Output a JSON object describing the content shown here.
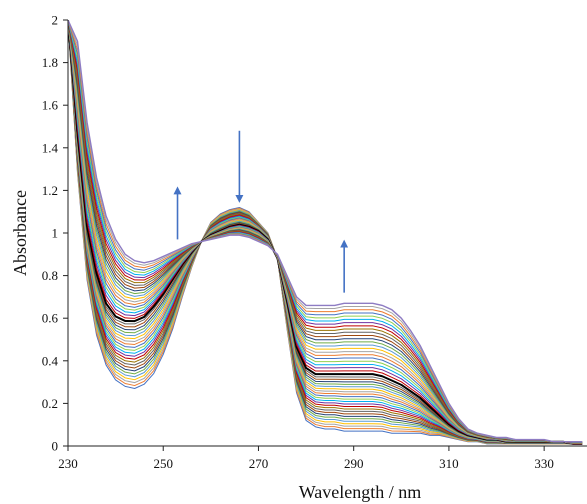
{
  "chart_data": {
    "type": "line",
    "title": "",
    "xlabel": "Wavelength  / nm",
    "ylabel": "Absorbance",
    "xlim": [
      230,
      339
    ],
    "ylim": [
      0,
      2
    ],
    "xticks": [
      230,
      250,
      270,
      290,
      310,
      330
    ],
    "yticks": [
      0,
      0.2,
      0.4,
      0.6,
      0.8,
      1,
      1.2,
      1.4,
      1.6,
      1.8,
      2
    ],
    "ytick_labels": [
      "0",
      "0.2",
      "0.4",
      "0.6",
      "0.8",
      "1",
      "1.2",
      "1.4",
      "1.6",
      "1.8",
      "2"
    ],
    "grid": false,
    "legend": "none",
    "x": [
      230,
      232,
      234,
      236,
      238,
      240,
      242,
      244,
      246,
      248,
      250,
      252,
      254,
      256,
      258,
      260,
      262,
      264,
      266,
      268,
      270,
      272,
      274,
      276,
      278,
      280,
      282,
      284,
      286,
      288,
      290,
      292,
      294,
      296,
      298,
      300,
      302,
      304,
      306,
      308,
      310,
      312,
      314,
      316,
      318,
      320,
      322,
      324,
      326,
      328,
      330,
      332,
      334,
      336,
      338
    ],
    "series": [
      {
        "color": "#4472c4",
        "values": [
          2.0,
          1.28,
          0.78,
          0.52,
          0.38,
          0.31,
          0.28,
          0.27,
          0.29,
          0.34,
          0.43,
          0.55,
          0.7,
          0.84,
          0.96,
          1.05,
          1.09,
          1.11,
          1.12,
          1.1,
          1.05,
          1.0,
          0.88,
          0.55,
          0.25,
          0.12,
          0.09,
          0.08,
          0.08,
          0.07,
          0.07,
          0.07,
          0.07,
          0.07,
          0.06,
          0.06,
          0.06,
          0.06,
          0.05,
          0.05,
          0.04,
          0.03,
          0.02,
          0.02,
          0.01,
          0.01,
          0.01,
          0.01,
          0.01,
          0.01,
          0.01,
          0.01,
          0.01,
          0.01,
          0.01
        ]
      },
      {
        "color": "#000000",
        "values": [
          2.0,
          1.46,
          1.02,
          0.8,
          0.66,
          0.6,
          0.58,
          0.58,
          0.6,
          0.65,
          0.71,
          0.78,
          0.85,
          0.91,
          0.96,
          0.99,
          1.01,
          1.03,
          1.04,
          1.03,
          1.01,
          0.97,
          0.88,
          0.68,
          0.46,
          0.36,
          0.33,
          0.33,
          0.33,
          0.33,
          0.33,
          0.33,
          0.33,
          0.32,
          0.3,
          0.28,
          0.25,
          0.22,
          0.18,
          0.14,
          0.1,
          0.07,
          0.05,
          0.04,
          0.03,
          0.03,
          0.02,
          0.02,
          0.02,
          0.02,
          0.02,
          0.02,
          0.02,
          0.01,
          0.01
        ]
      },
      {
        "color": "#8e7cc3",
        "values": [
          2.0,
          1.9,
          1.52,
          1.26,
          1.08,
          0.97,
          0.9,
          0.87,
          0.86,
          0.87,
          0.89,
          0.91,
          0.93,
          0.95,
          0.96,
          0.97,
          0.98,
          0.99,
          0.99,
          0.98,
          0.96,
          0.94,
          0.9,
          0.8,
          0.7,
          0.66,
          0.66,
          0.66,
          0.66,
          0.67,
          0.67,
          0.67,
          0.67,
          0.66,
          0.64,
          0.6,
          0.54,
          0.47,
          0.38,
          0.29,
          0.2,
          0.13,
          0.08,
          0.06,
          0.05,
          0.04,
          0.04,
          0.03,
          0.03,
          0.03,
          0.03,
          0.02,
          0.02,
          0.02,
          0.02
        ]
      }
    ],
    "n_spectra": 46,
    "annotations": [
      {
        "kind": "arrow",
        "direction": "up",
        "x": 253,
        "y_from": 0.97,
        "y_to": 1.2
      },
      {
        "kind": "arrow",
        "direction": "down",
        "x": 266,
        "y_from": 1.48,
        "y_to": 1.16
      },
      {
        "kind": "arrow",
        "direction": "up",
        "x": 288,
        "y_from": 0.72,
        "y_to": 0.95
      }
    ],
    "palette": [
      "#4472c4",
      "#ed7d31",
      "#a5a5a5",
      "#ffc000",
      "#5b9bd5",
      "#70ad47",
      "#264478",
      "#9e480e",
      "#636363",
      "#997300",
      "#c00000",
      "#7030a0",
      "#00b0f0",
      "#92d050"
    ],
    "axis_color": "#222222",
    "arrow_color": "#4472c4"
  }
}
